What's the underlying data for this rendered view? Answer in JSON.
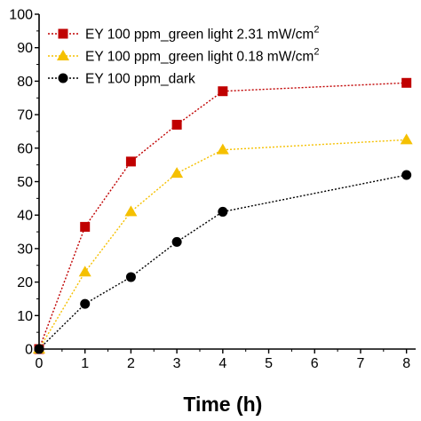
{
  "chart_data": {
    "type": "line",
    "title": "",
    "xlabel": "Time (h)",
    "ylabel": "",
    "xlim": [
      0,
      8.2
    ],
    "ylim": [
      0,
      100
    ],
    "xticks": [
      "0",
      "1",
      "2",
      "3",
      "4",
      "5",
      "6",
      "7",
      "8"
    ],
    "yticks": [
      "0",
      "10",
      "20",
      "30",
      "40",
      "50",
      "60",
      "70",
      "80",
      "90",
      "100"
    ],
    "grid": false,
    "legend_position": "top-left",
    "series": [
      {
        "name": "EY 100 ppm_green light 2.31 mW/cm",
        "name_sup": "2",
        "color": "#c00000",
        "marker": "square",
        "x": [
          0,
          1,
          2,
          3,
          4,
          8
        ],
        "y": [
          0,
          36.5,
          56,
          67,
          77,
          79.5
        ]
      },
      {
        "name": "EY 100 ppm_green light 0.18 mW/cm",
        "name_sup": "2",
        "color": "#f5c000",
        "marker": "triangle",
        "x": [
          0,
          1,
          2,
          3,
          4,
          8
        ],
        "y": [
          0,
          23,
          41,
          52.5,
          59.5,
          62.5
        ]
      },
      {
        "name": "EY 100 ppm_dark",
        "name_sup": "",
        "color": "#000000",
        "marker": "circle",
        "x": [
          0,
          1,
          2,
          3,
          4,
          8
        ],
        "y": [
          0,
          13.5,
          21.5,
          32,
          41,
          52
        ]
      }
    ]
  }
}
